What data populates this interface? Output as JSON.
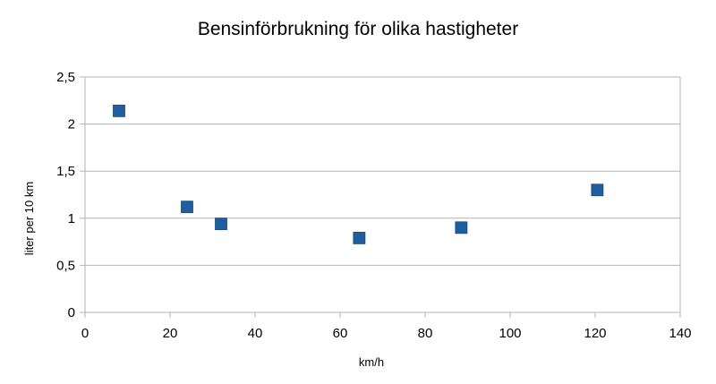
{
  "chart_data": {
    "type": "scatter",
    "title": "Bensinförbrukning för olika hastigheter",
    "xlabel": "km/h",
    "ylabel": "liter per 10 km",
    "xlim": [
      0,
      140
    ],
    "ylim": [
      0,
      2.5
    ],
    "x_ticks": [
      "0",
      "20",
      "40",
      "60",
      "80",
      "100",
      "120",
      "140"
    ],
    "y_ticks": [
      "0",
      "0,5",
      "1",
      "1,5",
      "2",
      "2,5"
    ],
    "grid": true,
    "legend": "none",
    "marker_color": "#1f5fa0",
    "series": [
      {
        "points": [
          {
            "x": 8,
            "y": 2.14
          },
          {
            "x": 24,
            "y": 1.12
          },
          {
            "x": 32,
            "y": 0.94
          },
          {
            "x": 64.5,
            "y": 0.79
          },
          {
            "x": 88.5,
            "y": 0.9
          },
          {
            "x": 120.5,
            "y": 1.3
          }
        ]
      }
    ]
  }
}
